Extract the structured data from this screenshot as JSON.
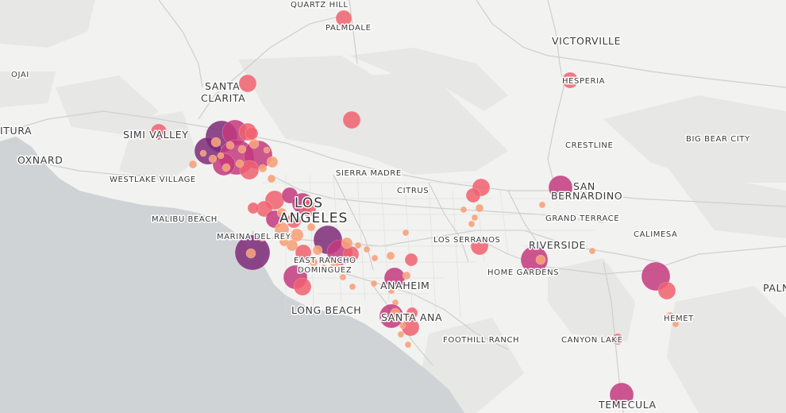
{
  "map": {
    "colors": {
      "land": "#f2f2f1",
      "water": "#cfd3d5",
      "mountain": "#e6e6e5",
      "road": "#c9c9c9",
      "road_major": "#bdbdbd",
      "dot_light": "#f6a27a",
      "dot_mid": "#f0626e",
      "dot_dark": "#c43a7c",
      "dot_darkest": "#7e2a78"
    },
    "labels": {
      "quartz_hill": "QUARTZ HILL",
      "palmdale": "PALMDALE",
      "victorville": "VICTORVILLE",
      "ojai": "OJAI",
      "santa": "SANTA",
      "clarita": "CLARITA",
      "hesperia": "HESPERIA",
      "itura": "ITURA",
      "simi_valley": "SIMI VALLEY",
      "crestline": "CRESTLINE",
      "big_bear_city": "BIG BEAR CITY",
      "oxnard": "OXNARD",
      "westlake_village": "WESTLAKE VILLAGE",
      "sierra_madre": "SIERRA MADRE",
      "citrus": "CITRUS",
      "san": "SAN",
      "bernardino": "BERNARDINO",
      "los": "LOS",
      "angeles": "ANGELES",
      "malibu_beach": "MALIBU BEACH",
      "grand_terrace": "GRAND TERRACE",
      "calimesa": "CALIMESA",
      "marina_del_rey": "MARINA DEL REY",
      "los_serranos": "LOS SERRANOS",
      "riverside": "RIVERSIDE",
      "east_rancho": "EAST RANCHO",
      "dominguez": "DOMINGUEZ",
      "home_gardens": "HOME GARDENS",
      "anaheim": "ANAHEIM",
      "paln": "PALN",
      "long_beach": "LONG BEACH",
      "santa_ana": "SANTA ANA",
      "hemet": "HEMET",
      "foothill_ranch": "FOOTHILL RANCH",
      "canyon_lake": "CANYON LAKE",
      "temecula": "TEMECULA"
    }
  }
}
